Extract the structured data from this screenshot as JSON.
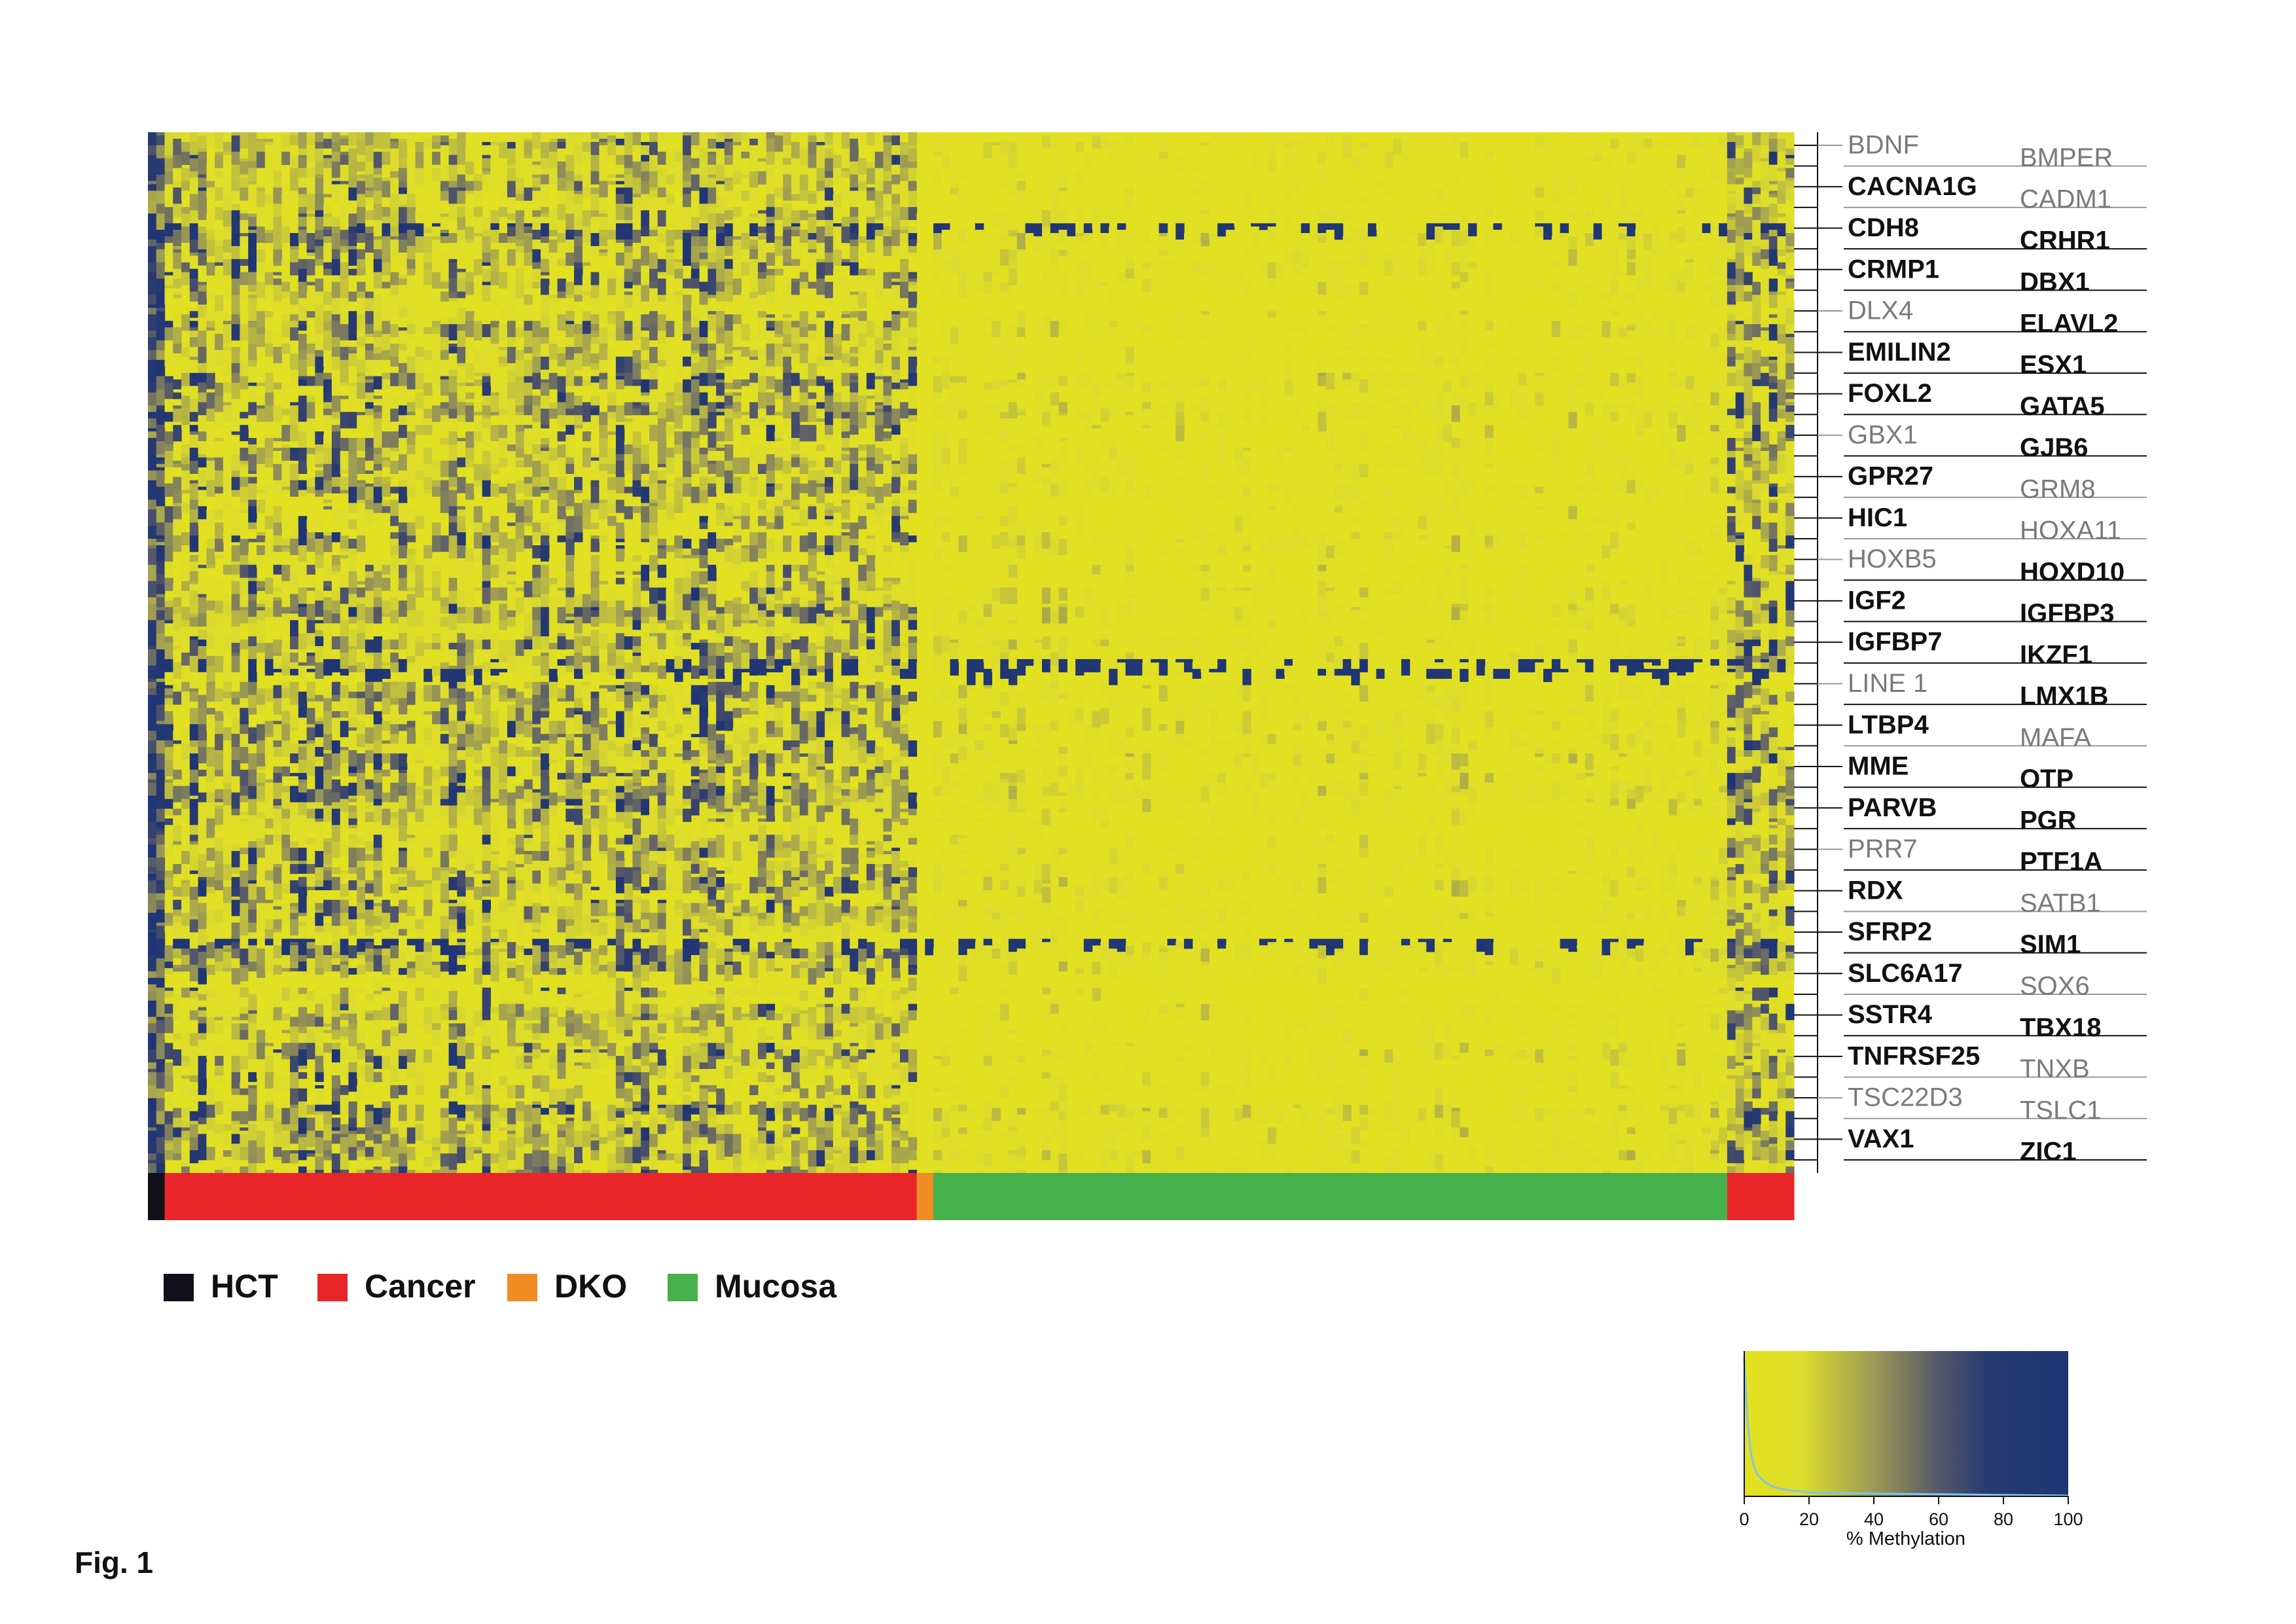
{
  "figure_label": "Fig. 1",
  "chart_data": [
    {
      "type": "heatmap",
      "title": "",
      "xlabel": "",
      "ylabel": "",
      "row_labels": [
        {
          "name": "BDNF",
          "bold": false,
          "side": "left"
        },
        {
          "name": "BMPER",
          "bold": false,
          "side": "right"
        },
        {
          "name": "CACNA1G",
          "bold": true,
          "side": "left"
        },
        {
          "name": "CADM1",
          "bold": false,
          "side": "right"
        },
        {
          "name": "CDH8",
          "bold": true,
          "side": "left"
        },
        {
          "name": "CRHR1",
          "bold": true,
          "side": "right"
        },
        {
          "name": "CRMP1",
          "bold": true,
          "side": "left"
        },
        {
          "name": "DBX1",
          "bold": true,
          "side": "right"
        },
        {
          "name": "DLX4",
          "bold": false,
          "side": "left"
        },
        {
          "name": "ELAVL2",
          "bold": true,
          "side": "right"
        },
        {
          "name": "EMILIN2",
          "bold": true,
          "side": "left"
        },
        {
          "name": "ESX1",
          "bold": true,
          "side": "right"
        },
        {
          "name": "FOXL2",
          "bold": true,
          "side": "left"
        },
        {
          "name": "GATA5",
          "bold": true,
          "side": "right"
        },
        {
          "name": "GBX1",
          "bold": false,
          "side": "left"
        },
        {
          "name": "GJB6",
          "bold": true,
          "side": "right"
        },
        {
          "name": "GPR27",
          "bold": true,
          "side": "left"
        },
        {
          "name": "GRM8",
          "bold": false,
          "side": "right"
        },
        {
          "name": "HIC1",
          "bold": true,
          "side": "left"
        },
        {
          "name": "HOXA11",
          "bold": false,
          "side": "right"
        },
        {
          "name": "HOXB5",
          "bold": false,
          "side": "left"
        },
        {
          "name": "HOXD10",
          "bold": true,
          "side": "right"
        },
        {
          "name": "IGF2",
          "bold": true,
          "side": "left"
        },
        {
          "name": "IGFBP3",
          "bold": true,
          "side": "right"
        },
        {
          "name": "IGFBP7",
          "bold": true,
          "side": "left"
        },
        {
          "name": "IKZF1",
          "bold": true,
          "side": "right"
        },
        {
          "name": "LINE 1",
          "bold": false,
          "side": "left"
        },
        {
          "name": "LMX1B",
          "bold": true,
          "side": "right"
        },
        {
          "name": "LTBP4",
          "bold": true,
          "side": "left"
        },
        {
          "name": "MAFA",
          "bold": false,
          "side": "right"
        },
        {
          "name": "MME",
          "bold": true,
          "side": "left"
        },
        {
          "name": "OTP",
          "bold": true,
          "side": "right"
        },
        {
          "name": "PARVB",
          "bold": true,
          "side": "left"
        },
        {
          "name": "PGR",
          "bold": true,
          "side": "right"
        },
        {
          "name": "PRR7",
          "bold": false,
          "side": "left"
        },
        {
          "name": "PTF1A",
          "bold": true,
          "side": "right"
        },
        {
          "name": "RDX",
          "bold": true,
          "side": "left"
        },
        {
          "name": "SATB1",
          "bold": false,
          "side": "right"
        },
        {
          "name": "SFRP2",
          "bold": true,
          "side": "left"
        },
        {
          "name": "SIM1",
          "bold": true,
          "side": "right"
        },
        {
          "name": "SLC6A17",
          "bold": true,
          "side": "left"
        },
        {
          "name": "SOX6",
          "bold": false,
          "side": "right"
        },
        {
          "name": "SSTR4",
          "bold": true,
          "side": "left"
        },
        {
          "name": "TBX18",
          "bold": true,
          "side": "right"
        },
        {
          "name": "TNFRSF25",
          "bold": true,
          "side": "left"
        },
        {
          "name": "TNXB",
          "bold": false,
          "side": "right"
        },
        {
          "name": "TSC22D3",
          "bold": false,
          "side": "left"
        },
        {
          "name": "TSLC1",
          "bold": false,
          "side": "right"
        },
        {
          "name": "VAX1",
          "bold": true,
          "side": "left"
        },
        {
          "name": "ZIC1",
          "bold": true,
          "side": "right"
        }
      ],
      "sample_groups": [
        {
          "name": "HCT",
          "color": "#111018",
          "count": 2
        },
        {
          "name": "Cancer",
          "color": "#e8262a",
          "count": 90
        },
        {
          "name": "DKO",
          "color": "#f08c24",
          "count": 2
        },
        {
          "name": "Mucosa",
          "color": "#46b04a",
          "count": 95
        },
        {
          "name": "Cancer",
          "color": "#e8262a",
          "count": 8
        }
      ],
      "group_mean_methylation_pct": {
        "HCT": 85,
        "Cancer": 35,
        "DKO": 5,
        "Mucosa": 10
      },
      "legend": [
        {
          "label": "HCT",
          "color": "#111018"
        },
        {
          "label": "Cancer",
          "color": "#e8262a"
        },
        {
          "label": "DKO",
          "color": "#f08c24"
        },
        {
          "label": "Mucosa",
          "color": "#46b04a"
        }
      ],
      "legend_position": "bottom-left"
    },
    {
      "type": "area",
      "title": "",
      "xlabel": "% Methylation",
      "ylabel": "",
      "xlim": [
        0,
        100
      ],
      "xticks": [
        "0",
        "20",
        "40",
        "60",
        "80",
        "100"
      ],
      "colorscale": [
        {
          "value": 0,
          "color": "#e3e21f"
        },
        {
          "value": 18,
          "color": "#dcdc2c"
        },
        {
          "value": 40,
          "color": "#9c9a54"
        },
        {
          "value": 60,
          "color": "#555869"
        },
        {
          "value": 75,
          "color": "#283a70"
        },
        {
          "value": 100,
          "color": "#1f3575"
        }
      ],
      "histogram": {
        "x": [
          0,
          1,
          2,
          3,
          4,
          6,
          8,
          10,
          15,
          20,
          30,
          40,
          60,
          80,
          100
        ],
        "y": [
          100,
          55,
          32,
          22,
          16,
          11,
          8,
          6,
          4,
          3,
          2.5,
          2,
          1.5,
          1,
          0.5
        ],
        "color": "#7fc4e8"
      }
    }
  ]
}
